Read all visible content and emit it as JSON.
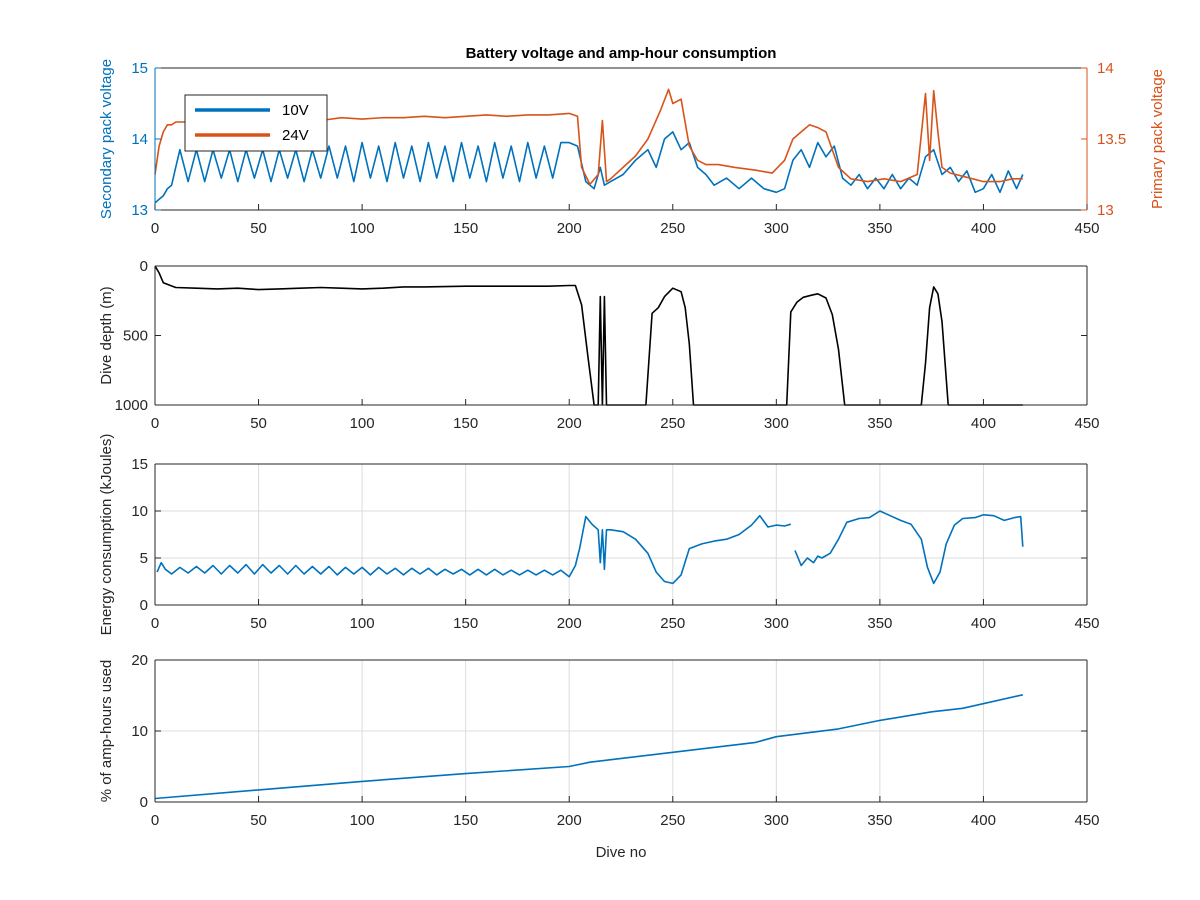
{
  "figure_title": "Battery voltage and amp-hour consumption",
  "chart_data": [
    {
      "type": "line",
      "title": "Battery voltage and amp-hour consumption",
      "xlabel": "",
      "ylabel": "Secondary pack voltage",
      "ylabel_right": "Primary pack voltage",
      "xlim": [
        0,
        450
      ],
      "ylim": [
        13,
        15
      ],
      "ylim_right": [
        13,
        14
      ],
      "xticks": [
        0,
        50,
        100,
        150,
        200,
        250,
        300,
        350,
        400,
        450
      ],
      "yticks": [
        13,
        14,
        15
      ],
      "yticks_right": [
        13,
        13.5,
        14
      ],
      "grid": false,
      "legend": "top-left",
      "series": [
        {
          "name": "10V",
          "axis": "left",
          "color": "#0072BD",
          "x": [
            0,
            2,
            4,
            6,
            8,
            10,
            12,
            16,
            20,
            24,
            28,
            32,
            36,
            40,
            44,
            48,
            52,
            56,
            60,
            64,
            68,
            72,
            76,
            80,
            84,
            88,
            92,
            96,
            100,
            104,
            108,
            112,
            116,
            120,
            124,
            128,
            132,
            136,
            140,
            144,
            148,
            152,
            156,
            160,
            164,
            168,
            172,
            176,
            180,
            184,
            188,
            192,
            196,
            200,
            204,
            208,
            212,
            215,
            217,
            220,
            226,
            232,
            238,
            242,
            246,
            250,
            254,
            258,
            262,
            266,
            270,
            276,
            282,
            288,
            294,
            300,
            304,
            308,
            312,
            316,
            320,
            324,
            328,
            332,
            336,
            340,
            344,
            348,
            352,
            356,
            360,
            364,
            368,
            372,
            376,
            380,
            384,
            388,
            392,
            396,
            400,
            404,
            408,
            412,
            416,
            419
          ],
          "values": [
            13.1,
            13.15,
            13.2,
            13.3,
            13.35,
            13.6,
            13.85,
            13.4,
            13.85,
            13.4,
            13.85,
            13.45,
            13.85,
            13.4,
            13.85,
            13.45,
            13.85,
            13.4,
            13.85,
            13.45,
            13.85,
            13.4,
            13.85,
            13.45,
            13.9,
            13.45,
            13.9,
            13.4,
            13.95,
            13.45,
            13.9,
            13.4,
            13.95,
            13.45,
            13.9,
            13.4,
            13.95,
            13.45,
            13.9,
            13.4,
            13.95,
            13.45,
            13.9,
            13.4,
            13.95,
            13.45,
            13.9,
            13.4,
            13.95,
            13.45,
            13.9,
            13.45,
            13.95,
            13.95,
            13.9,
            13.4,
            13.3,
            13.6,
            13.35,
            13.4,
            13.5,
            13.7,
            13.85,
            13.6,
            14.0,
            14.1,
            13.85,
            13.95,
            13.6,
            13.5,
            13.35,
            13.45,
            13.3,
            13.45,
            13.3,
            13.25,
            13.3,
            13.7,
            13.85,
            13.6,
            13.95,
            13.75,
            13.9,
            13.45,
            13.35,
            13.5,
            13.3,
            13.45,
            13.3,
            13.5,
            13.3,
            13.45,
            13.35,
            13.75,
            13.85,
            13.5,
            13.6,
            13.4,
            13.55,
            13.25,
            13.3,
            13.5,
            13.25,
            13.55,
            13.3,
            13.5
          ]
        },
        {
          "name": "24V",
          "axis": "right",
          "color": "#D95319",
          "x": [
            0,
            2,
            4,
            6,
            8,
            10,
            14,
            20,
            30,
            40,
            50,
            60,
            70,
            80,
            90,
            100,
            110,
            120,
            130,
            140,
            150,
            160,
            170,
            180,
            190,
            200,
            204,
            206,
            210,
            214,
            216,
            218,
            220,
            226,
            232,
            238,
            244,
            248,
            250,
            254,
            258,
            262,
            266,
            272,
            280,
            290,
            298,
            304,
            308,
            312,
            316,
            320,
            324,
            330,
            336,
            344,
            352,
            360,
            368,
            372,
            374,
            376,
            378,
            380,
            384,
            392,
            400,
            408,
            414,
            419
          ],
          "values": [
            13.25,
            13.45,
            13.55,
            13.6,
            13.6,
            13.62,
            13.62,
            13.62,
            13.63,
            13.62,
            13.64,
            13.63,
            13.65,
            13.63,
            13.65,
            13.64,
            13.65,
            13.65,
            13.66,
            13.65,
            13.66,
            13.67,
            13.66,
            13.67,
            13.67,
            13.68,
            13.66,
            13.3,
            13.18,
            13.25,
            13.63,
            13.2,
            13.22,
            13.3,
            13.38,
            13.5,
            13.7,
            13.85,
            13.75,
            13.78,
            13.45,
            13.35,
            13.32,
            13.32,
            13.3,
            13.28,
            13.26,
            13.35,
            13.5,
            13.55,
            13.6,
            13.58,
            13.55,
            13.3,
            13.22,
            13.2,
            13.22,
            13.2,
            13.25,
            13.82,
            13.35,
            13.84,
            13.55,
            13.3,
            13.26,
            13.23,
            13.2,
            13.2,
            13.22,
            13.22
          ]
        }
      ]
    },
    {
      "type": "line",
      "xlabel": "",
      "ylabel": "Dive depth (m)",
      "xlim": [
        0,
        450
      ],
      "ylim": [
        0,
        1000
      ],
      "y_reversed": true,
      "xticks": [
        0,
        50,
        100,
        150,
        200,
        250,
        300,
        350,
        400,
        450
      ],
      "yticks": [
        0,
        500,
        1000
      ],
      "grid": false,
      "series": [
        {
          "color": "#000000",
          "x": [
            0,
            2,
            4,
            10,
            20,
            30,
            40,
            50,
            60,
            70,
            80,
            90,
            100,
            110,
            120,
            130,
            140,
            150,
            160,
            170,
            180,
            190,
            200,
            203,
            206,
            209,
            212,
            214,
            215,
            216,
            217,
            218,
            219,
            220,
            225,
            230,
            235,
            237,
            240,
            243,
            246,
            250,
            254,
            256,
            258,
            260,
            262,
            270,
            280,
            290,
            300,
            305,
            307,
            310,
            313,
            317,
            320,
            324,
            327,
            330,
            333,
            340,
            350,
            360,
            370,
            372,
            374,
            376,
            378,
            380,
            383,
            386,
            390,
            400,
            410,
            419
          ],
          "values": [
            0,
            50,
            120,
            155,
            160,
            165,
            160,
            170,
            165,
            160,
            155,
            160,
            165,
            160,
            150,
            150,
            148,
            145,
            145,
            145,
            145,
            145,
            140,
            140,
            280,
            650,
            1000,
            1000,
            220,
            1000,
            220,
            1000,
            1000,
            1000,
            1000,
            1000,
            1000,
            1000,
            340,
            300,
            220,
            160,
            185,
            300,
            560,
            1000,
            1000,
            1000,
            1000,
            1000,
            1000,
            1000,
            330,
            260,
            225,
            210,
            200,
            230,
            350,
            600,
            1000,
            1000,
            1000,
            1000,
            1000,
            700,
            300,
            150,
            200,
            400,
            1000,
            1000,
            1000,
            1000,
            1000,
            1000
          ]
        }
      ]
    },
    {
      "type": "line",
      "xlabel": "",
      "ylabel": "Energy consumption (kJoules)",
      "xlim": [
        0,
        450
      ],
      "ylim": [
        0,
        15
      ],
      "xticks": [
        0,
        50,
        100,
        150,
        200,
        250,
        300,
        350,
        400,
        450
      ],
      "yticks": [
        0,
        5,
        10,
        15
      ],
      "grid": true,
      "series": [
        {
          "color": "#0072BD",
          "x": [
            1,
            3,
            5,
            8,
            12,
            16,
            20,
            24,
            28,
            32,
            36,
            40,
            44,
            48,
            52,
            56,
            60,
            64,
            68,
            72,
            76,
            80,
            84,
            88,
            92,
            96,
            100,
            104,
            108,
            112,
            116,
            120,
            124,
            128,
            132,
            136,
            140,
            144,
            148,
            152,
            156,
            160,
            164,
            168,
            172,
            176,
            180,
            184,
            188,
            192,
            196,
            200,
            203,
            205,
            208,
            211,
            214,
            215,
            216,
            217,
            218,
            220,
            226,
            232,
            238,
            242,
            246,
            250,
            254,
            258,
            264,
            270,
            276,
            282,
            288,
            292,
            296,
            300,
            304,
            307
          ],
          "values": [
            3.5,
            4.5,
            3.8,
            3.3,
            4.0,
            3.4,
            4.1,
            3.4,
            4.2,
            3.3,
            4.2,
            3.4,
            4.3,
            3.3,
            4.3,
            3.4,
            4.2,
            3.3,
            4.2,
            3.3,
            4.1,
            3.3,
            4.1,
            3.2,
            4.0,
            3.3,
            4.0,
            3.2,
            4.0,
            3.3,
            3.9,
            3.2,
            3.9,
            3.3,
            3.9,
            3.2,
            3.8,
            3.3,
            3.8,
            3.2,
            3.8,
            3.2,
            3.8,
            3.2,
            3.7,
            3.2,
            3.7,
            3.2,
            3.7,
            3.2,
            3.7,
            3.0,
            4.2,
            6.0,
            9.4,
            8.6,
            8.0,
            4.5,
            8.0,
            3.8,
            8.0,
            8.0,
            7.8,
            7.0,
            5.5,
            3.5,
            2.5,
            2.3,
            3.2,
            6.0,
            6.5,
            6.8,
            7.0,
            7.5,
            8.5,
            9.5,
            8.3,
            8.5,
            8.4,
            8.6
          ]
        },
        {
          "color": "#0072BD",
          "x": [
            309,
            312,
            315,
            318,
            320,
            322,
            326,
            330,
            334,
            340,
            345,
            350,
            355,
            360,
            365,
            370,
            373,
            376,
            379,
            382,
            386,
            390,
            396,
            400,
            405,
            410,
            415,
            418,
            419
          ],
          "values": [
            5.8,
            4.2,
            5.0,
            4.5,
            5.2,
            5.0,
            5.5,
            7.0,
            8.8,
            9.2,
            9.3,
            10.0,
            9.5,
            9.0,
            8.6,
            7.0,
            4.0,
            2.3,
            3.5,
            6.5,
            8.5,
            9.2,
            9.3,
            9.6,
            9.5,
            9.0,
            9.3,
            9.4,
            6.2
          ]
        }
      ]
    },
    {
      "type": "line",
      "xlabel": "Dive no",
      "ylabel": "% of amp-hours used",
      "xlim": [
        0,
        450
      ],
      "ylim": [
        0,
        20
      ],
      "xticks": [
        0,
        50,
        100,
        150,
        200,
        250,
        300,
        350,
        400,
        450
      ],
      "yticks": [
        0,
        10,
        20
      ],
      "grid": true,
      "series": [
        {
          "color": "#0072BD",
          "x": [
            0,
            50,
            100,
            150,
            200,
            210,
            250,
            290,
            300,
            330,
            350,
            375,
            390,
            419
          ],
          "values": [
            0.5,
            1.7,
            2.9,
            4.0,
            5.0,
            5.6,
            7.0,
            8.4,
            9.2,
            10.3,
            11.5,
            12.7,
            13.2,
            15.1
          ]
        }
      ]
    }
  ]
}
